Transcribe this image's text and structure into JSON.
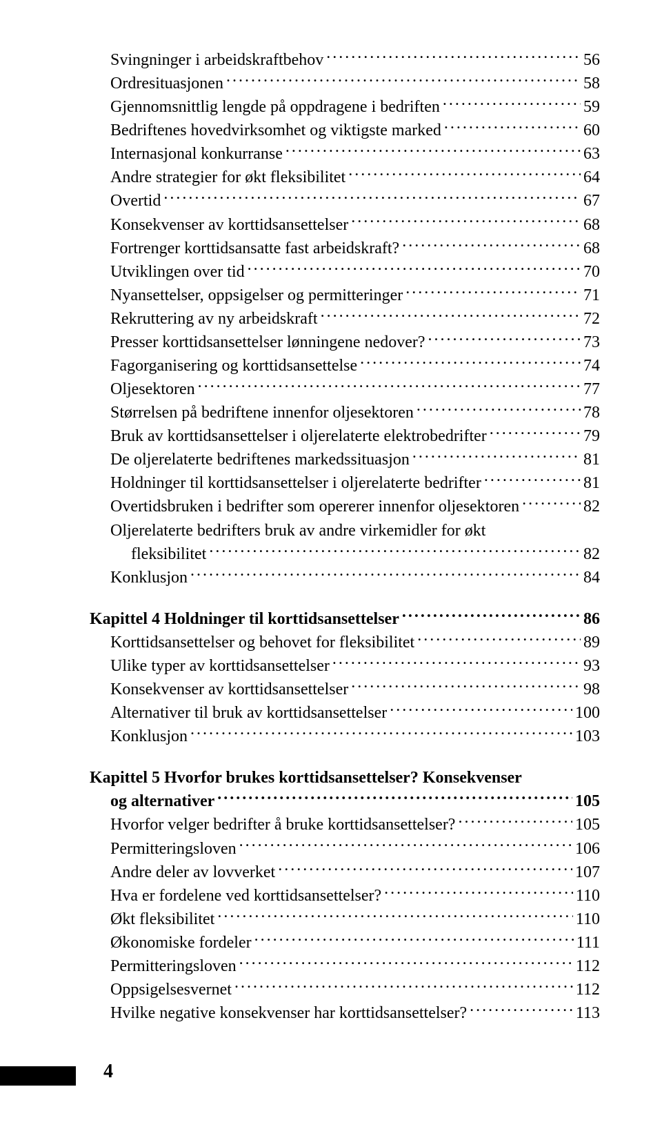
{
  "sections": [
    {
      "gap": false,
      "entries": [
        {
          "label": "Svingninger i arbeidskraftbehov",
          "page": "56",
          "indent": 1,
          "bold": false
        },
        {
          "label": "Ordresituasjonen",
          "page": "58",
          "indent": 1,
          "bold": false
        },
        {
          "label": "Gjennomsnittlig lengde på oppdragene i bedriften",
          "page": "59",
          "indent": 1,
          "bold": false
        },
        {
          "label": "Bedriftenes hovedvirksomhet og viktigste marked",
          "page": "60",
          "indent": 1,
          "bold": false
        },
        {
          "label": "Internasjonal konkurranse",
          "page": "63",
          "indent": 1,
          "bold": false
        },
        {
          "label": "Andre strategier for økt fleksibilitet",
          "page": "64",
          "indent": 1,
          "bold": false
        },
        {
          "label": "Overtid",
          "page": "67",
          "indent": 1,
          "bold": false
        },
        {
          "label": "Konsekvenser av korttidsansettelser",
          "page": "68",
          "indent": 1,
          "bold": false
        },
        {
          "label": "Fortrenger korttidsansatte fast arbeidskraft?",
          "page": "68",
          "indent": 1,
          "bold": false
        },
        {
          "label": "Utviklingen over tid",
          "page": "70",
          "indent": 1,
          "bold": false
        },
        {
          "label": "Nyansettelser, oppsigelser og permitteringer",
          "page": "71",
          "indent": 1,
          "bold": false
        },
        {
          "label": "Rekruttering av ny arbeidskraft",
          "page": "72",
          "indent": 1,
          "bold": false
        },
        {
          "label": "Presser korttidsansettelser lønningene nedover?",
          "page": "73",
          "indent": 1,
          "bold": false
        },
        {
          "label": "Fagorganisering og korttidsansettelse",
          "page": "74",
          "indent": 1,
          "bold": false
        },
        {
          "label": "Oljesektoren",
          "page": "77",
          "indent": 1,
          "bold": false
        },
        {
          "label": "Størrelsen på bedriftene innenfor oljesektoren",
          "page": "78",
          "indent": 1,
          "bold": false
        },
        {
          "label": "Bruk av korttidsansettelser i oljerelaterte elektrobedrifter",
          "page": "79",
          "indent": 1,
          "bold": false
        },
        {
          "label": "De oljerelaterte bedriftenes markedssituasjon",
          "page": "81",
          "indent": 1,
          "bold": false
        },
        {
          "label": "Holdninger til korttidsansettelser i oljerelaterte bedrifter",
          "page": "81",
          "indent": 1,
          "bold": false
        },
        {
          "label": "Overtidsbruken i bedrifter som opererer innenfor oljesektoren",
          "page": "82",
          "indent": 1,
          "bold": false
        },
        {
          "label": "Oljerelaterte bedrifters bruk av andre virkemidler for økt",
          "page": "",
          "indent": 1,
          "bold": false,
          "no_leader": true
        },
        {
          "label": "fleksibilitet",
          "page": "82",
          "indent": 2,
          "bold": false
        },
        {
          "label": "Konklusjon",
          "page": "84",
          "indent": 1,
          "bold": false
        }
      ]
    },
    {
      "gap": true,
      "entries": [
        {
          "label": "Kapittel 4 Holdninger til korttidsansettelser",
          "page": "86",
          "indent": 0,
          "bold": true
        },
        {
          "label": "Korttidsansettelser og behovet for fleksibilitet",
          "page": "89",
          "indent": 1,
          "bold": false
        },
        {
          "label": "Ulike typer av korttidsansettelser",
          "page": "93",
          "indent": 1,
          "bold": false
        },
        {
          "label": "Konsekvenser av korttidsansettelser",
          "page": "98",
          "indent": 1,
          "bold": false
        },
        {
          "label": "Alternativer til bruk av korttidsansettelser",
          "page": "100",
          "indent": 1,
          "bold": false
        },
        {
          "label": "Konklusjon",
          "page": "103",
          "indent": 1,
          "bold": false
        }
      ]
    },
    {
      "gap": true,
      "entries": [
        {
          "label": "Kapittel 5 Hvorfor brukes korttidsansettelser? Konsekvenser",
          "page": "",
          "indent": 0,
          "bold": true,
          "no_leader": true
        },
        {
          "label": "og alternativer",
          "page": "105",
          "indent": 1,
          "bold": true
        },
        {
          "label": "Hvorfor velger bedrifter å bruke korttidsansettelser?",
          "page": "105",
          "indent": 1,
          "bold": false
        },
        {
          "label": "Permitteringsloven",
          "page": "106",
          "indent": 1,
          "bold": false
        },
        {
          "label": "Andre deler av lovverket",
          "page": "107",
          "indent": 1,
          "bold": false
        },
        {
          "label": "Hva er fordelene ved korttidsansettelser?",
          "page": "110",
          "indent": 1,
          "bold": false
        },
        {
          "label": "Økt fleksibilitet",
          "page": "110",
          "indent": 1,
          "bold": false
        },
        {
          "label": "Økonomiske fordeler",
          "page": "111",
          "indent": 1,
          "bold": false
        },
        {
          "label": "Permitteringsloven",
          "page": "112",
          "indent": 1,
          "bold": false
        },
        {
          "label": "Oppsigelsesvernet",
          "page": "112",
          "indent": 1,
          "bold": false
        },
        {
          "label": "Hvilke negative konsekvenser har korttidsansettelser?",
          "page": "113",
          "indent": 1,
          "bold": false
        }
      ]
    }
  ],
  "page_number": "4"
}
